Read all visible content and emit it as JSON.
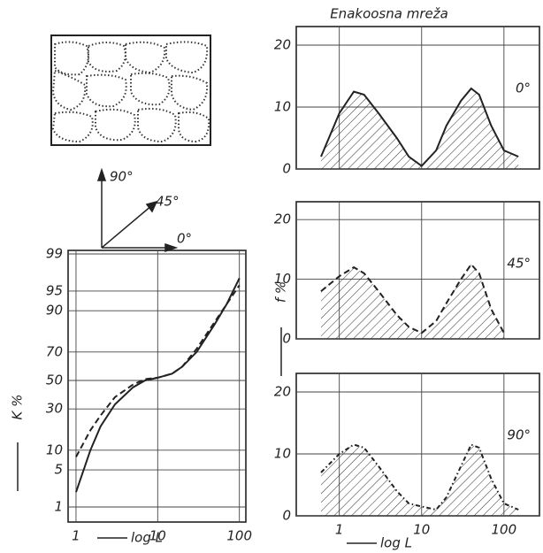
{
  "orientation_labels": [
    "90°",
    "45°",
    "0°"
  ],
  "chart_data": [
    {
      "type": "line",
      "ylabel": "K %",
      "xlabel": "log L",
      "xscale": "log",
      "yscale": "probability",
      "xlim": [
        0.8,
        120
      ],
      "ylim": [
        1,
        99
      ],
      "xticks": [
        1,
        10,
        100
      ],
      "yticks": [
        1,
        5,
        10,
        30,
        50,
        70,
        90,
        95,
        99
      ],
      "grid": true,
      "x": [
        1,
        1.5,
        2,
        3,
        5,
        7,
        10,
        15,
        20,
        30,
        50,
        70,
        100
      ],
      "series": [
        {
          "color": "#222222",
          "dash": "solid",
          "values": [
            2,
            10,
            20,
            33,
            45,
            50,
            52,
            55,
            60,
            70,
            85,
            92,
            97
          ]
        },
        {
          "color": "#222222",
          "dash": "dashed",
          "values": [
            8,
            18,
            26,
            38,
            47,
            51,
            52,
            55,
            60,
            72,
            86,
            92,
            96
          ]
        }
      ]
    },
    {
      "type": "area",
      "title": "Enakoosna mreža",
      "label": "0°",
      "xscale": "log",
      "xlim": [
        0.3,
        270
      ],
      "ylim": [
        0,
        23
      ],
      "xticks": [
        1,
        10,
        100
      ],
      "yticks": [
        0,
        10,
        20
      ],
      "show_xtick_labels": false,
      "grid": true,
      "x": [
        0.6,
        1,
        1.5,
        2,
        3,
        5,
        7,
        10,
        15,
        20,
        30,
        40,
        50,
        70,
        100,
        150
      ],
      "series": [
        {
          "color": "#222222",
          "dash": "solid",
          "values": [
            2,
            9,
            12.5,
            12,
            9,
            5,
            2,
            0.5,
            3,
            7,
            11,
            13,
            12,
            7,
            3,
            2
          ]
        }
      ]
    },
    {
      "type": "area",
      "label": "45°",
      "ylabel": "f %",
      "xscale": "log",
      "xlim": [
        0.3,
        270
      ],
      "ylim": [
        0,
        23
      ],
      "xticks": [
        1,
        10,
        100
      ],
      "yticks": [
        0,
        10,
        20
      ],
      "show_xtick_labels": false,
      "grid": true,
      "x": [
        0.6,
        1,
        1.5,
        2,
        3,
        5,
        7,
        10,
        15,
        20,
        30,
        40,
        50,
        70,
        100
      ],
      "series": [
        {
          "color": "#222222",
          "dash": "dashed",
          "values": [
            8,
            10.5,
            12,
            11,
            8,
            4,
            2,
            1,
            3,
            6,
            10,
            12.5,
            11,
            5,
            1
          ]
        }
      ]
    },
    {
      "type": "area",
      "label": "90°",
      "xlabel": "log L",
      "xscale": "log",
      "xlim": [
        0.3,
        270
      ],
      "ylim": [
        0,
        23
      ],
      "xticks": [
        1,
        10,
        100
      ],
      "yticks": [
        0,
        10,
        20
      ],
      "show_xtick_labels": true,
      "grid": true,
      "x": [
        0.6,
        1,
        1.5,
        2,
        3,
        5,
        7,
        10,
        15,
        20,
        30,
        40,
        50,
        70,
        100,
        150
      ],
      "series": [
        {
          "color": "#222222",
          "dash": "dotted",
          "values": [
            7,
            10,
            11.5,
            11,
            8,
            4,
            2,
            1.5,
            1,
            3,
            8,
            11.5,
            11,
            6,
            2,
            1
          ]
        }
      ]
    }
  ]
}
